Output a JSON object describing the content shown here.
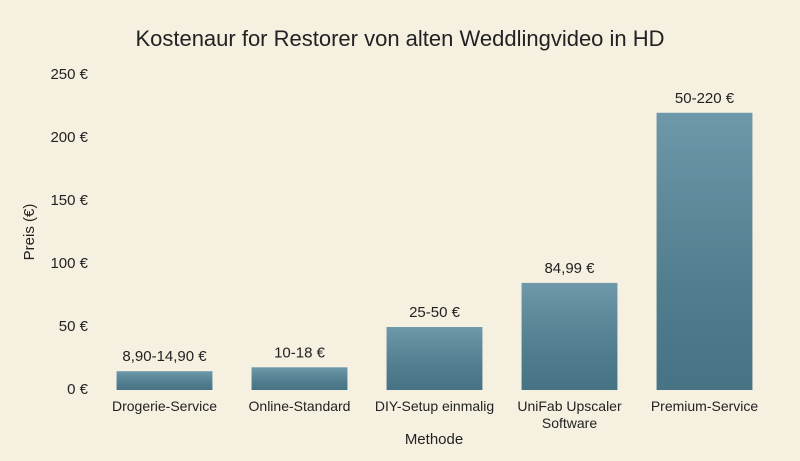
{
  "chart_data": {
    "type": "bar",
    "title": "Kostenaur for Restorer von alten Weddlingvideo in HD",
    "x_label": "Methode",
    "y_label": "Preis (€)",
    "categories": [
      "Drogerie-Service",
      "Online-Standard",
      "DIY-Setup einmalig",
      "UniFab Upscaler Software",
      "Premium-Service"
    ],
    "values": [
      14.9,
      18,
      50,
      84.99,
      220
    ],
    "value_labels": [
      "8,90-14,90 €",
      "10-18 €",
      "25-50 €",
      "84,99 €",
      "50-220 €"
    ],
    "color": "#4f8397",
    "ylim": [
      0,
      250
    ],
    "yticks": [
      {
        "value": 0,
        "label": "0 €"
      },
      {
        "value": 50,
        "label": "50 €"
      },
      {
        "value": 100,
        "label": "100 €"
      },
      {
        "value": 150,
        "label": "150 €"
      },
      {
        "value": 200,
        "label": "200 €"
      },
      {
        "value": 250,
        "label": "250 €"
      }
    ],
    "grid": false
  }
}
